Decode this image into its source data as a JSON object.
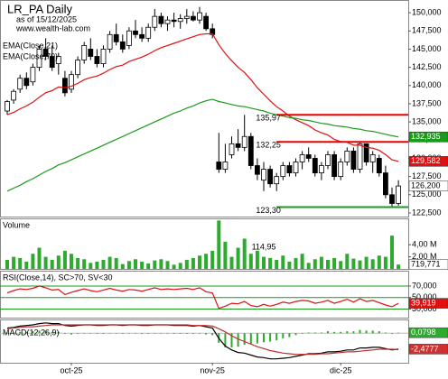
{
  "chart_data": [
    {
      "type": "candlestick",
      "title": "LR_PA Daily",
      "subtitle": "as of 15/12/2025",
      "source": "www.wealth-lab.com",
      "categories": [
        null,
        null,
        null,
        null,
        null,
        null,
        null,
        null,
        null,
        null,
        "oct-25",
        null,
        null,
        null,
        null,
        null,
        null,
        null,
        null,
        null,
        null,
        null,
        null,
        null,
        null,
        null,
        null,
        null,
        null,
        null,
        null,
        null,
        "nov-25",
        null,
        null,
        null,
        null,
        null,
        null,
        null,
        null,
        null,
        null,
        null,
        null,
        null,
        null,
        null,
        null,
        null,
        null,
        null,
        "dic-25",
        null,
        null,
        null,
        null,
        null,
        null,
        null,
        null,
        null
      ],
      "open": [
        136.5,
        138.0,
        139.5,
        141.0,
        140.5,
        142.5,
        145.0,
        144.0,
        143.0,
        141.0,
        139.5,
        141.5,
        143.5,
        145.0,
        144.0,
        143.0,
        145.0,
        147.0,
        146.0,
        145.5,
        147.5,
        147.0,
        146.5,
        148.0,
        149.5,
        148.5,
        149.0,
        148.8,
        149.2,
        149.5,
        149.0,
        149.5,
        147.8,
        129.5,
        128.5,
        130.5,
        132.0,
        131.5,
        133.0,
        129.0,
        127.0,
        128.5,
        126.5,
        127.5,
        129.0,
        128.0,
        129.5,
        130.5,
        130.0,
        128.0,
        129.0,
        130.5,
        127.5,
        129.5,
        131.0,
        128.5,
        132.0,
        129.5,
        130.0,
        128.0,
        125.0,
        123.8
      ],
      "high": [
        138.0,
        139.5,
        141.5,
        141.8,
        143.0,
        145.5,
        146.5,
        145.5,
        144.5,
        142.0,
        142.0,
        144.0,
        146.0,
        146.5,
        145.0,
        145.5,
        147.5,
        148.5,
        147.0,
        148.0,
        149.0,
        148.0,
        148.5,
        150.5,
        150.0,
        149.5,
        150.0,
        149.8,
        150.5,
        150.2,
        150.8,
        150.0,
        148.5,
        133.5,
        132.0,
        133.0,
        134.0,
        135.97,
        133.5,
        130.0,
        129.5,
        129.0,
        128.0,
        129.5,
        129.5,
        130.0,
        131.0,
        131.5,
        130.5,
        129.5,
        131.0,
        131.0,
        130.0,
        131.5,
        131.5,
        132.25,
        132.0,
        131.0,
        130.5,
        129.0,
        126.0,
        127.0
      ],
      "low": [
        136.0,
        137.5,
        139.0,
        139.5,
        140.0,
        142.0,
        143.5,
        142.0,
        141.5,
        138.5,
        139.0,
        141.0,
        143.0,
        143.5,
        142.5,
        142.5,
        144.5,
        145.5,
        144.5,
        145.0,
        146.5,
        146.0,
        146.0,
        147.5,
        148.0,
        147.5,
        148.0,
        147.8,
        148.5,
        148.8,
        148.5,
        147.5,
        146.5,
        128.0,
        128.0,
        130.0,
        131.0,
        131.0,
        128.5,
        127.0,
        125.5,
        126.0,
        125.5,
        127.0,
        127.5,
        127.5,
        128.5,
        129.5,
        127.5,
        127.0,
        128.5,
        127.0,
        127.0,
        129.0,
        128.0,
        128.0,
        129.0,
        128.0,
        127.5,
        124.5,
        123.3,
        123.5
      ],
      "close": [
        137.8,
        139.2,
        141.0,
        140.0,
        142.5,
        145.0,
        144.0,
        142.5,
        144.0,
        139.0,
        141.5,
        143.5,
        145.5,
        144.0,
        143.0,
        145.0,
        147.0,
        146.0,
        145.0,
        147.5,
        147.0,
        146.5,
        148.0,
        149.5,
        148.5,
        149.0,
        148.8,
        149.2,
        149.5,
        149.0,
        150.0,
        147.8,
        147.0,
        128.5,
        129.5,
        132.0,
        131.5,
        133.0,
        129.0,
        127.8,
        128.5,
        126.5,
        127.5,
        129.0,
        128.0,
        129.5,
        130.5,
        130.0,
        128.0,
        129.0,
        130.5,
        127.5,
        129.5,
        131.0,
        128.5,
        132.0,
        129.5,
        130.5,
        128.0,
        125.0,
        123.8,
        126.2
      ],
      "close_label": "126,200",
      "ylim": [
        122,
        151.5
      ],
      "yticks": [
        {
          "value": 122.5,
          "label": "122,500"
        },
        {
          "value": 125,
          "label": "125,000"
        },
        {
          "value": 127.5,
          "label": "127,500"
        },
        {
          "value": 130,
          "label": "130,000"
        },
        {
          "value": 132.5,
          "label": "132,500"
        },
        {
          "value": 135,
          "label": "135,000"
        },
        {
          "value": 137.5,
          "label": "137,500"
        },
        {
          "value": 140,
          "label": "140,000"
        },
        {
          "value": 142.5,
          "label": "142,500"
        },
        {
          "value": 145,
          "label": "145,000"
        },
        {
          "value": 147.5,
          "label": "147,500"
        },
        {
          "value": 150,
          "label": "150,000"
        }
      ],
      "series": [
        {
          "name": "EMA(Close,21)",
          "color": "#e01010",
          "last_label": "129,582",
          "values": [
            136.0,
            136.3,
            136.8,
            137.2,
            137.7,
            138.4,
            139.0,
            139.3,
            139.8,
            139.7,
            139.9,
            140.3,
            140.8,
            141.1,
            141.3,
            141.7,
            142.2,
            142.6,
            142.8,
            143.3,
            143.6,
            143.9,
            144.3,
            144.8,
            145.2,
            145.5,
            145.8,
            146.1,
            146.4,
            146.7,
            147.0,
            147.1,
            147.1,
            145.6,
            144.4,
            143.4,
            142.5,
            141.8,
            140.8,
            139.7,
            138.8,
            137.9,
            137.1,
            136.5,
            135.8,
            135.3,
            134.9,
            134.5,
            133.9,
            133.5,
            133.2,
            132.6,
            132.3,
            132.2,
            131.8,
            131.8,
            131.5,
            131.4,
            131.1,
            130.5,
            129.8,
            129.582
          ]
        },
        {
          "name": "EMA(Close,70)",
          "color": "#1a9a1a",
          "last_label": "132,935",
          "values": [
            125.5,
            125.9,
            126.3,
            126.8,
            127.2,
            127.7,
            128.2,
            128.6,
            129.1,
            129.4,
            129.8,
            130.2,
            130.6,
            131.0,
            131.4,
            131.8,
            132.2,
            132.6,
            133.0,
            133.4,
            133.8,
            134.2,
            134.6,
            135.0,
            135.4,
            135.8,
            136.2,
            136.5,
            136.9,
            137.2,
            137.6,
            137.9,
            138.1,
            137.8,
            137.6,
            137.4,
            137.2,
            137.1,
            136.9,
            136.7,
            136.5,
            136.2,
            136.0,
            135.8,
            135.6,
            135.5,
            135.3,
            135.2,
            135.0,
            134.8,
            134.7,
            134.5,
            134.4,
            134.3,
            134.1,
            134.0,
            133.8,
            133.7,
            133.5,
            133.3,
            133.1,
            132.935
          ]
        }
      ],
      "levels": [
        {
          "value": 135.97,
          "label": "135,97",
          "color": "#ee0000"
        },
        {
          "value": 132.25,
          "label": "132,25",
          "color": "#ee0000"
        },
        {
          "value": 123.3,
          "label": "123,30",
          "color": "#1a9a1a"
        }
      ]
    },
    {
      "type": "bar",
      "title": "Volume",
      "color": "#2eaa2e",
      "annotation": "114,95",
      "last_label": "719,771",
      "values": [
        1.5,
        2.0,
        1.8,
        1.2,
        2.5,
        3.5,
        2.0,
        1.5,
        2.2,
        3.0,
        2.5,
        1.8,
        1.6,
        1.0,
        1.2,
        1.5,
        2.0,
        1.8,
        0.8,
        1.3,
        1.6,
        1.2,
        0.9,
        1.4,
        1.6,
        1.3,
        0.7,
        1.0,
        1.5,
        1.8,
        2.2,
        2.5,
        3.0,
        8.0,
        4.5,
        2.0,
        3.5,
        5.0,
        2.5,
        3.0,
        2.0,
        1.8,
        1.5,
        2.2,
        1.2,
        1.8,
        2.5,
        1.0,
        1.6,
        2.0,
        1.5,
        1.8,
        1.3,
        2.5,
        1.7,
        1.4,
        2.0,
        1.6,
        2.2,
        2.0,
        5.5,
        0.719771
      ],
      "ylim": [
        0,
        8.2
      ],
      "yticks": [
        {
          "value": 2,
          "label": "2,00 M"
        },
        {
          "value": 4,
          "label": "4,00 M"
        }
      ]
    },
    {
      "type": "line",
      "title": "RSI(Close,14), SC>70, SV<30",
      "color": "#e01010",
      "grid_color": "#1a9a1a",
      "last_label": "39,919",
      "values": [
        58,
        62,
        65,
        64,
        66,
        70,
        67,
        63,
        64,
        55,
        59,
        62,
        65,
        62,
        60,
        63,
        66,
        63,
        61,
        64,
        63,
        61,
        64,
        67,
        64,
        65,
        64,
        65,
        66,
        64,
        67,
        60,
        58,
        31,
        35,
        40,
        39,
        43,
        36,
        34,
        38,
        35,
        38,
        42,
        40,
        43,
        45,
        44,
        40,
        42,
        45,
        40,
        43,
        47,
        42,
        48,
        43,
        45,
        41,
        37,
        34,
        39.919
      ],
      "ylim": [
        15,
        95
      ],
      "yticks": [
        {
          "value": 30,
          "label": "30,000"
        },
        {
          "value": 50,
          "label": "50,000"
        },
        {
          "value": 70,
          "label": "70,000"
        }
      ]
    },
    {
      "type": "macd",
      "title": "MACD(12,26,9)",
      "ylim": [
        -4.6,
        2
      ],
      "series": [
        {
          "color": "#000000",
          "last_label": "-2,4777",
          "values": [
            0.8,
            0.9,
            1.1,
            1.2,
            1.3,
            1.5,
            1.6,
            1.5,
            1.5,
            1.2,
            1.1,
            1.2,
            1.3,
            1.3,
            1.2,
            1.2,
            1.3,
            1.3,
            1.2,
            1.3,
            1.3,
            1.2,
            1.2,
            1.3,
            1.3,
            1.3,
            1.2,
            1.2,
            1.2,
            1.1,
            1.2,
            1.0,
            0.8,
            -0.8,
            -2.0,
            -2.6,
            -3.0,
            -3.1,
            -3.4,
            -3.7,
            -3.8,
            -4.0,
            -4.0,
            -3.9,
            -3.8,
            -3.6,
            -3.4,
            -3.2,
            -3.2,
            -3.1,
            -2.9,
            -2.9,
            -2.8,
            -2.6,
            -2.6,
            -2.3,
            -2.3,
            -2.2,
            -2.2,
            -2.4,
            -2.6,
            -2.4777
          ]
        },
        {
          "color": "#c03030",
          "values": [
            0.7,
            0.8,
            0.9,
            1.0,
            1.0,
            1.1,
            1.2,
            1.3,
            1.3,
            1.3,
            1.3,
            1.3,
            1.3,
            1.3,
            1.3,
            1.3,
            1.3,
            1.3,
            1.3,
            1.3,
            1.3,
            1.3,
            1.3,
            1.3,
            1.3,
            1.3,
            1.3,
            1.3,
            1.3,
            1.2,
            1.2,
            1.2,
            1.1,
            0.7,
            0.2,
            -0.4,
            -0.9,
            -1.3,
            -1.7,
            -2.1,
            -2.4,
            -2.7,
            -2.9,
            -3.1,
            -3.2,
            -3.3,
            -3.3,
            -3.3,
            -3.3,
            -3.2,
            -3.2,
            -3.1,
            -3.0,
            -2.9,
            -2.9,
            -2.8,
            -2.7,
            -2.6,
            -2.5,
            -2.5,
            -2.5,
            -2.5575
          ]
        }
      ],
      "histogram": {
        "color": "#2eaa2e",
        "last_label": "0,0798",
        "values": [
          0.1,
          0.1,
          0.2,
          0.2,
          0.3,
          0.4,
          0.4,
          0.2,
          0.2,
          -0.1,
          -0.2,
          -0.1,
          0,
          0,
          -0.1,
          -0.1,
          0,
          0,
          -0.1,
          0,
          0,
          -0.1,
          -0.1,
          0,
          0,
          0,
          -0.1,
          -0.1,
          -0.1,
          -0.1,
          0,
          -0.2,
          -0.3,
          -1.5,
          -2.2,
          -2.2,
          -2.1,
          -1.8,
          -1.7,
          -1.6,
          -1.4,
          -1.3,
          -1.1,
          -0.8,
          -0.6,
          -0.3,
          -0.1,
          0.1,
          0.1,
          0.1,
          0.3,
          0.2,
          0.2,
          0.3,
          0.3,
          0.5,
          0.4,
          0.4,
          0.3,
          0.1,
          -0.1,
          0.0798
        ]
      }
    }
  ]
}
